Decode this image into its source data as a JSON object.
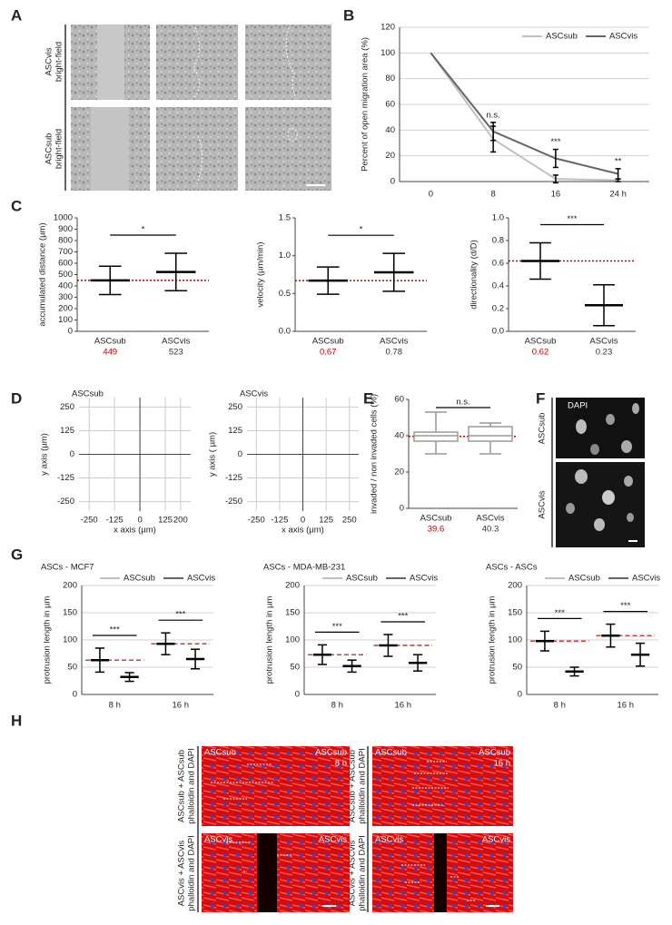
{
  "figure": {
    "panel_labels": [
      "A",
      "B",
      "C",
      "D",
      "E",
      "F",
      "G",
      "H"
    ],
    "panel_a": {
      "row_labels": [
        [
          "ASCvis",
          "bright-field"
        ],
        [
          "ASCsub",
          "bright-field"
        ]
      ]
    },
    "panel_f": {
      "image_label": "DAPI",
      "row_labels": [
        "ASCsub",
        "ASCvis"
      ]
    },
    "panel_h": {
      "row_labels": [
        [
          "ASCsub + ASCsub",
          "phalloidin and DAPI"
        ],
        [
          "ASCsub + ASCsub",
          "phalloidin and DAPI"
        ],
        [
          "ASCvis + ASCvis",
          "phalloidin and DAPI"
        ],
        [
          "ASCvis + ASCvis",
          "phalloidin and DAPI"
        ]
      ],
      "image_labels": [
        [
          "ASCsub",
          "ASCsub",
          "8 h"
        ],
        [
          "ASCsub",
          "ASCsub",
          "16 h"
        ],
        [
          "ASCvis",
          "ASCvis"
        ],
        [
          "ASCvis",
          "ASCvis"
        ]
      ]
    }
  },
  "chart_data": [
    {
      "type": "line",
      "categories": [
        "0",
        "8",
        "16",
        "24 h"
      ],
      "ylabel": "Percent of open migration area (%)",
      "ylim": [
        0,
        120
      ],
      "yticks": [
        0,
        20,
        40,
        60,
        80,
        100,
        120
      ],
      "grid": true,
      "legend_position": "top-right",
      "series": [
        {
          "name": "ASCsub",
          "color": "#c0c0c0",
          "values": [
            100,
            33,
            2,
            1
          ],
          "errors": [
            null,
            10,
            3,
            1
          ]
        },
        {
          "name": "ASCvis",
          "color": "#666666",
          "values": [
            100,
            39,
            18,
            6
          ],
          "errors": [
            null,
            7,
            7,
            4
          ]
        }
      ],
      "annotations": [
        "n.s.",
        "***",
        "**"
      ]
    },
    {
      "type": "dotplot",
      "ylabel": "accumulated distance (µm)",
      "categories": [
        "ASCsub",
        "ASCvis"
      ],
      "values": [
        449,
        523
      ],
      "errors": [
        125,
        165
      ],
      "value_label_colors": [
        "#c00000",
        "#333333"
      ],
      "reference_line_color": "#c00000",
      "ylim": [
        0,
        1000
      ],
      "yticks": [
        0,
        100,
        200,
        300,
        400,
        500,
        600,
        700,
        800,
        900,
        1000
      ],
      "annotation": "*"
    },
    {
      "type": "dotplot",
      "ylabel": "velocity (µm/min)",
      "categories": [
        "ASCsub",
        "ASCvis"
      ],
      "values": [
        0.67,
        0.78
      ],
      "errors": [
        0.18,
        0.25
      ],
      "value_label_colors": [
        "#c00000",
        "#333333"
      ],
      "reference_line_color": "#c00000",
      "ylim": [
        0,
        1.5
      ],
      "yticks": [
        {
          "value": 0,
          "label": "0.0"
        },
        0.5,
        {
          "value": 1,
          "label": "1.0"
        },
        1.5
      ],
      "annotation": "*"
    },
    {
      "type": "dotplot",
      "ylabel": "directionality (d/D)",
      "categories": [
        "ASCsub",
        "ASCvis"
      ],
      "values": [
        0.62,
        0.23
      ],
      "errors": [
        0.16,
        0.18
      ],
      "value_label_colors": [
        "#c00000",
        "#333333"
      ],
      "reference_line_color": "#c00000",
      "ylim": [
        0,
        1
      ],
      "yticks": [
        {
          "value": 0,
          "label": "0.0"
        },
        0.2,
        0.4,
        0.6,
        0.8,
        {
          "value": 1,
          "label": "1.0"
        }
      ],
      "annotation": "***"
    },
    {
      "type": "trajectory",
      "title": "ASCsub",
      "xlabel": "x axis (µm)",
      "ylabel": "y axis (µm)",
      "xlim": [
        -300,
        250
      ],
      "ylim": [
        -300,
        300
      ],
      "xticks": [
        -250,
        -125,
        0,
        125,
        200
      ],
      "yticks": [
        -250,
        -125,
        0,
        125,
        250
      ],
      "grid": true
    },
    {
      "type": "trajectory",
      "title": "ASCvis",
      "xlabel": "x axis (µm)",
      "ylabel": "y axis ( µm)",
      "xlim": [
        -300,
        300
      ],
      "ylim": [
        -300,
        300
      ],
      "xticks": [
        -250,
        -125,
        0,
        125,
        250
      ],
      "yticks": [
        -250,
        -125,
        0,
        125,
        250
      ],
      "grid": true
    },
    {
      "type": "box",
      "ylabel": "invaded / non invaded cells (%)",
      "categories": [
        "ASCsub",
        "ASCvis"
      ],
      "boxes": [
        {
          "min": 30,
          "q1": 37,
          "median": 40,
          "q3": 42,
          "max": 53
        },
        {
          "min": 30,
          "q1": 37,
          "median": 40,
          "q3": 45,
          "max": 47
        }
      ],
      "means": [
        39.6,
        40.3
      ],
      "value_label_colors": [
        "#c00000",
        "#333333"
      ],
      "reference_line_color": "#c00000",
      "box_color": "#999999",
      "ylim": [
        0,
        60
      ],
      "yticks": [
        0,
        20,
        40,
        60
      ],
      "annotation": "n.s."
    },
    {
      "type": "grouped_dotplot",
      "title": "ASCs - MCF7",
      "ylabel": "protrusion length in µm",
      "categories": [
        "8 h",
        "16 h"
      ],
      "series": [
        {
          "name": "ASCsub",
          "color": "#c0c0c0",
          "values": [
            63,
            93
          ],
          "errors": [
            22,
            20
          ]
        },
        {
          "name": "ASCvis",
          "color": "#666666",
          "values": [
            32,
            65
          ],
          "errors": [
            8,
            18
          ]
        }
      ],
      "ylim": [
        0,
        200
      ],
      "yticks": [
        0,
        50,
        100,
        150,
        200
      ],
      "grid": true,
      "reference_line_color": "#c00000",
      "annotations": [
        "***",
        "***"
      ],
      "legend_position": "top"
    },
    {
      "type": "grouped_dotplot",
      "title": "ASCs - MDA-MB-231",
      "ylabel": "protrusion length in µm",
      "categories": [
        "8 h",
        "16 h"
      ],
      "series": [
        {
          "name": "ASCsub",
          "color": "#c0c0c0",
          "values": [
            73,
            90
          ],
          "errors": [
            18,
            20
          ]
        },
        {
          "name": "ASCvis",
          "color": "#666666",
          "values": [
            52,
            58
          ],
          "errors": [
            11,
            15
          ]
        }
      ],
      "ylim": [
        0,
        200
      ],
      "yticks": [
        0,
        50,
        100,
        150,
        200
      ],
      "grid": true,
      "reference_line_color": "#c00000",
      "annotations": [
        "***",
        "***"
      ],
      "legend_position": "top"
    },
    {
      "type": "grouped_dotplot",
      "title": "ASCs - ASCs",
      "ylabel": "protrusion length in µm",
      "categories": [
        "8 h",
        "16 h"
      ],
      "series": [
        {
          "name": "ASCsub",
          "color": "#c0c0c0",
          "values": [
            98,
            108
          ],
          "errors": [
            18,
            21
          ]
        },
        {
          "name": "ASCvis",
          "color": "#666666",
          "values": [
            42,
            73
          ],
          "errors": [
            8,
            21
          ]
        }
      ],
      "ylim": [
        0,
        200
      ],
      "yticks": [
        0,
        50,
        100,
        150,
        200
      ],
      "grid": true,
      "reference_line_color": "#c00000",
      "annotations": [
        "***",
        "***"
      ],
      "legend_position": "top"
    }
  ]
}
